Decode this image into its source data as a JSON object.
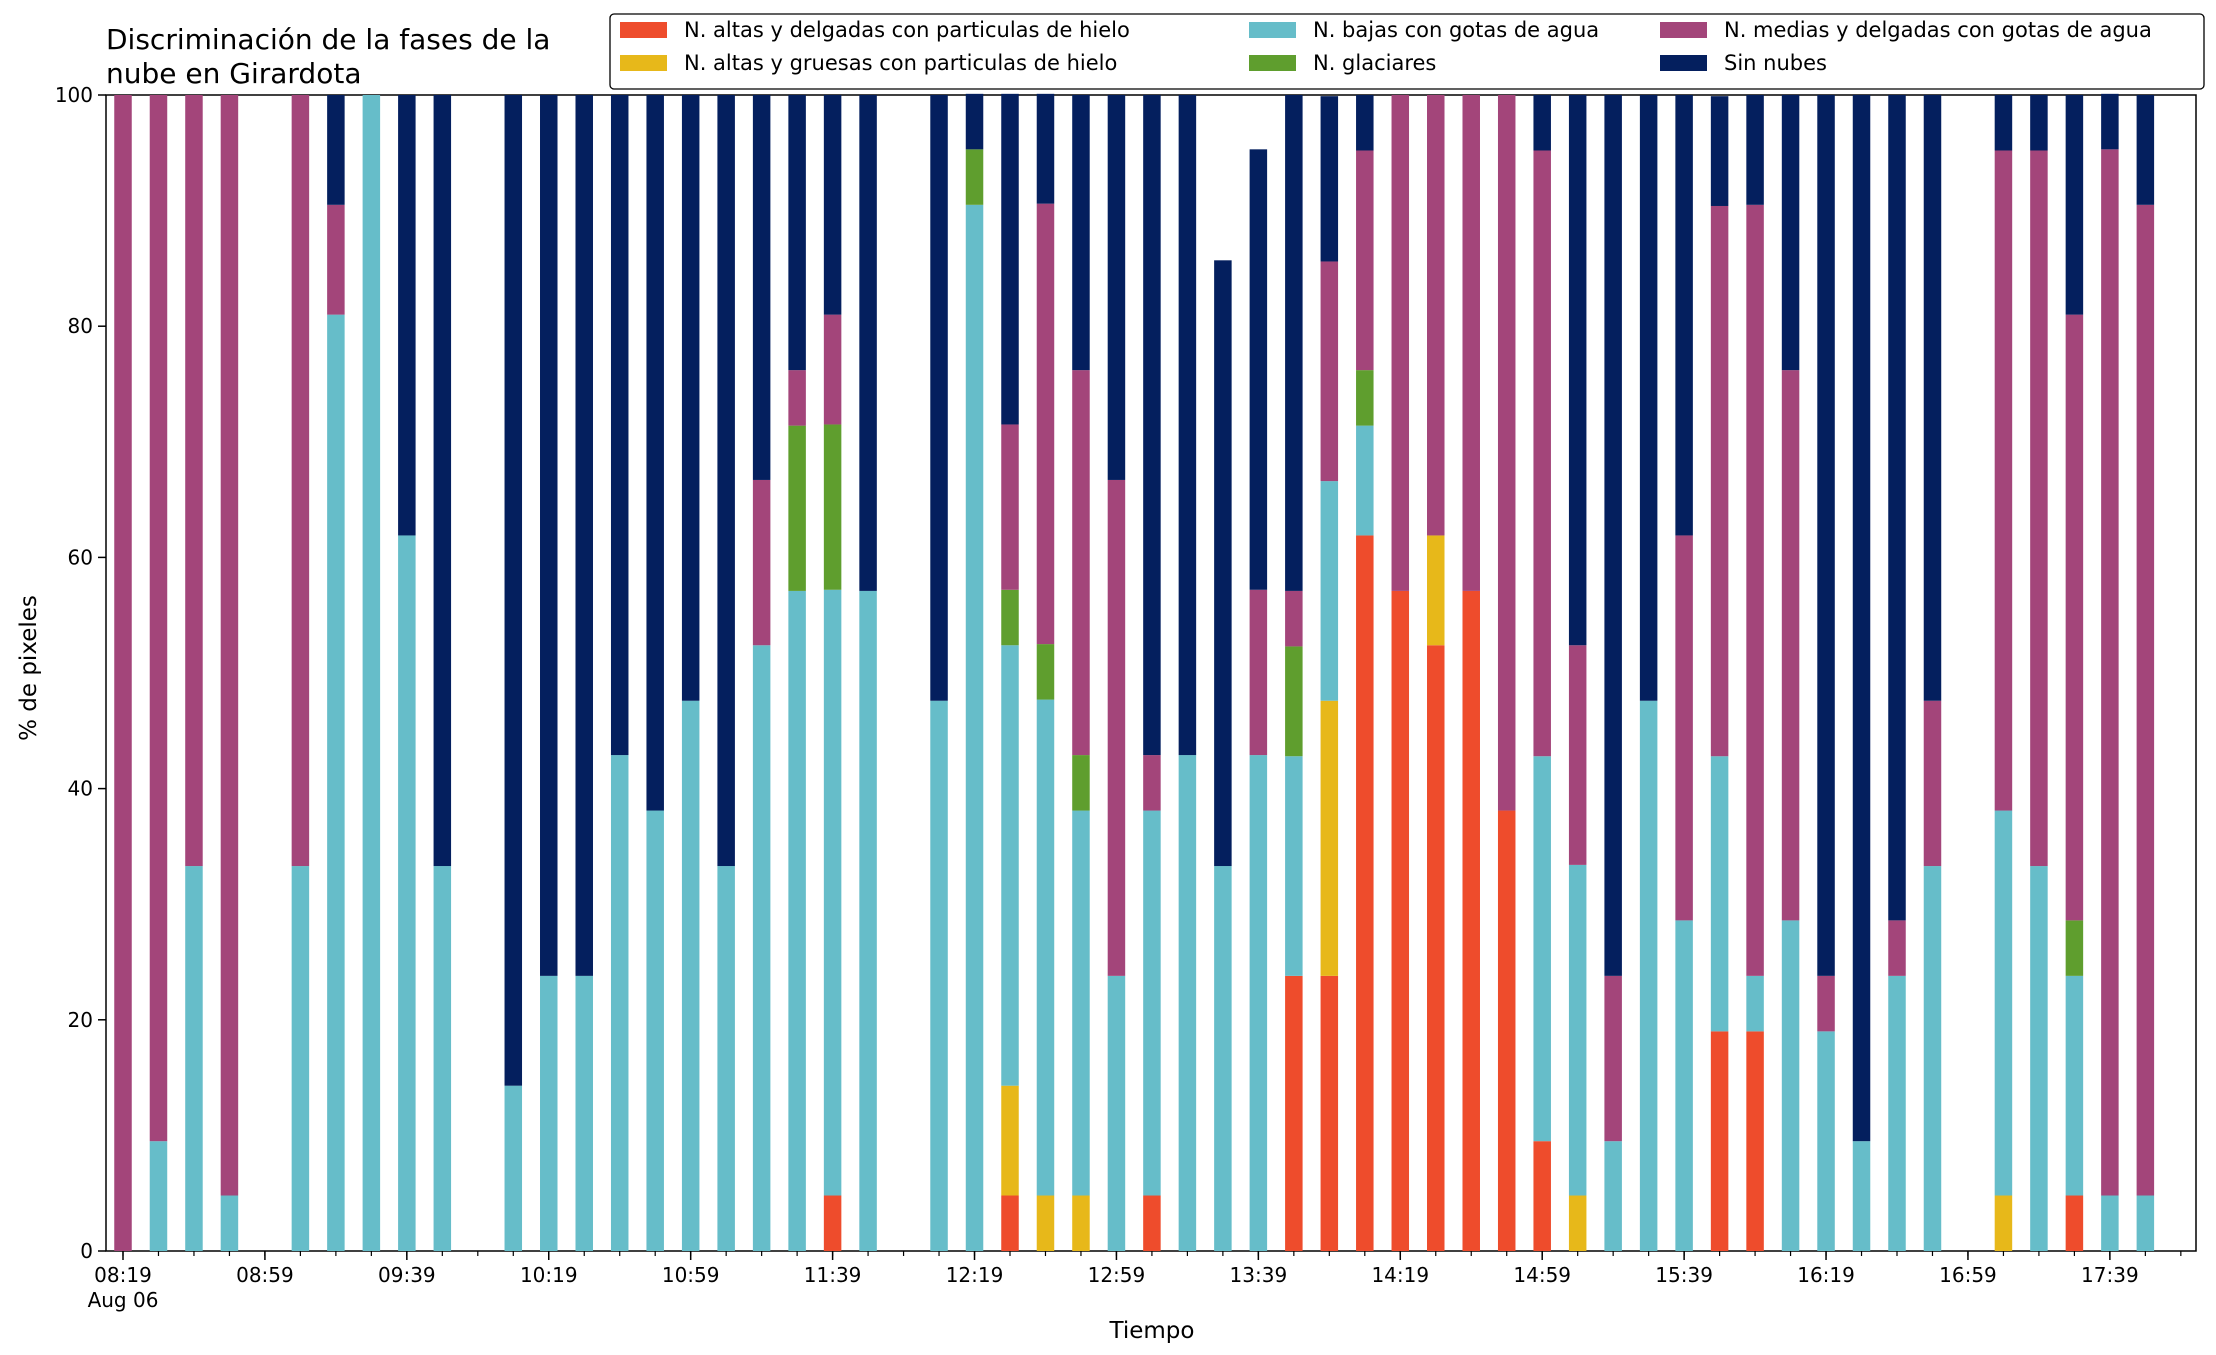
{
  "chart_data": {
    "type": "bar",
    "stacked": true,
    "title": [
      "Discriminación de la fases de la",
      "nube en Girardota"
    ],
    "xlabel": "Tiempo",
    "ylabel": "% de pixeles",
    "ylim": [
      0,
      100
    ],
    "yticks": [
      0,
      20,
      40,
      60,
      80,
      100
    ],
    "grid": false,
    "legend_placement": "top-right",
    "x_tick_labels": [
      "08:19",
      "08:59",
      "09:39",
      "10:19",
      "10:59",
      "11:39",
      "12:19",
      "12:59",
      "13:39",
      "14:19",
      "14:59",
      "15:39",
      "16:19",
      "16:59",
      "17:39"
    ],
    "x_tick_date": "Aug 06",
    "x_time_start": "08:19",
    "x_time_step_minutes": 10,
    "x_time_end": "17:59",
    "categories": [
      "08:19",
      "08:29",
      "08:39",
      "08:49",
      "08:59",
      "09:09",
      "09:19",
      "09:29",
      "09:39",
      "09:49",
      "09:59",
      "10:09",
      "10:19",
      "10:29",
      "10:39",
      "10:49",
      "10:59",
      "11:09",
      "11:19",
      "11:29",
      "11:39",
      "11:49",
      "11:59",
      "12:09",
      "12:19",
      "12:29",
      "12:39",
      "12:49",
      "12:59",
      "13:09",
      "13:19",
      "13:29",
      "13:39",
      "13:49",
      "13:59",
      "14:09",
      "14:19",
      "14:29",
      "14:39",
      "14:49",
      "14:59",
      "15:09",
      "15:19",
      "15:29",
      "15:39",
      "15:49",
      "15:59",
      "16:09",
      "16:19",
      "16:29",
      "16:39",
      "16:49",
      "16:59",
      "17:09",
      "17:19",
      "17:29",
      "17:39",
      "17:49"
    ],
    "series": [
      {
        "name": "N. altas y delgadas con particulas de hielo",
        "color": "#ee4c2c",
        "values": [
          0,
          0,
          0,
          0,
          0,
          0,
          0,
          0,
          0,
          0,
          0,
          0,
          0,
          0,
          0,
          0,
          0,
          0,
          0,
          0,
          4.8,
          0,
          0,
          0,
          0,
          4.8,
          0,
          0,
          0,
          4.8,
          0,
          0,
          0,
          23.8,
          23.8,
          61.9,
          57.1,
          52.4,
          57.1,
          38.1,
          9.5,
          0,
          0,
          0,
          0,
          19.0,
          19.0,
          0,
          0,
          0,
          0,
          0,
          0,
          0,
          0,
          4.8,
          0,
          0
        ]
      },
      {
        "name": "N. altas y gruesas con particulas de hielo",
        "color": "#e7b81a",
        "values": [
          0,
          0,
          0,
          0,
          0,
          0,
          0,
          0,
          0,
          0,
          0,
          0,
          0,
          0,
          0,
          0,
          0,
          0,
          0,
          0,
          0,
          0,
          0,
          0,
          0,
          9.5,
          4.8,
          4.8,
          0,
          0,
          0,
          0,
          0,
          0,
          23.8,
          0,
          0,
          9.5,
          0,
          0,
          0,
          4.8,
          0,
          0,
          0,
          0,
          0,
          0,
          0,
          0,
          0,
          0,
          0,
          4.8,
          0,
          0,
          0,
          0
        ]
      },
      {
        "name": "N. bajas con gotas de agua",
        "color": "#66bdc9",
        "values": [
          0,
          9.5,
          33.3,
          4.8,
          0,
          33.3,
          81.0,
          100,
          61.9,
          33.3,
          0,
          14.3,
          23.8,
          23.8,
          42.9,
          38.1,
          47.6,
          33.3,
          52.4,
          57.1,
          52.4,
          57.1,
          0,
          47.6,
          90.5,
          38.1,
          42.9,
          33.3,
          23.8,
          33.3,
          42.9,
          33.3,
          42.9,
          19.0,
          19.0,
          9.5,
          0,
          0,
          0,
          0,
          33.3,
          28.6,
          9.5,
          47.6,
          28.6,
          23.8,
          4.8,
          28.6,
          19.0,
          9.5,
          23.8,
          33.3,
          0,
          33.3,
          33.3,
          19.0,
          4.8,
          4.8
        ]
      },
      {
        "name": "N. glaciares",
        "color": "#5f9e2e",
        "values": [
          0,
          0,
          0,
          0,
          0,
          0,
          0,
          0,
          0,
          0,
          0,
          0,
          0,
          0,
          0,
          0,
          0,
          0,
          0,
          14.3,
          14.3,
          0,
          0,
          0,
          4.8,
          4.8,
          4.8,
          4.8,
          0,
          0,
          0,
          0,
          0,
          9.5,
          0,
          4.8,
          0,
          0,
          0,
          0,
          0,
          0,
          0,
          0,
          0,
          0,
          0,
          0,
          0,
          0,
          0,
          0,
          0,
          0,
          0,
          4.8,
          0,
          0
        ]
      },
      {
        "name": "N. medias y delgadas con gotas de agua",
        "color": "#a3457a",
        "values": [
          100,
          90.5,
          66.7,
          95.2,
          0,
          66.7,
          9.5,
          0,
          0,
          0,
          0,
          0,
          0,
          0,
          0,
          0,
          0,
          0,
          14.3,
          4.8,
          9.5,
          0,
          0,
          0,
          0,
          14.3,
          38.1,
          33.3,
          42.9,
          4.8,
          0,
          0,
          14.3,
          4.8,
          19.0,
          19.0,
          42.9,
          38.1,
          42.9,
          61.9,
          52.4,
          19.0,
          14.3,
          0,
          33.3,
          47.6,
          66.7,
          47.6,
          4.8,
          0,
          4.8,
          14.3,
          0,
          57.1,
          61.9,
          52.4,
          90.5,
          85.7
        ]
      },
      {
        "name": "Sin nubes",
        "color": "#041f5e",
        "values": [
          0,
          0,
          0,
          0,
          0,
          0,
          9.5,
          0,
          38.1,
          66.7,
          0,
          85.7,
          76.2,
          76.2,
          57.1,
          61.9,
          52.4,
          66.7,
          33.3,
          23.8,
          19.0,
          42.9,
          0,
          52.4,
          4.8,
          28.6,
          9.5,
          23.8,
          33.3,
          57.1,
          57.1,
          52.4,
          38.1,
          42.9,
          14.3,
          4.8,
          0,
          0,
          0,
          0,
          4.8,
          47.6,
          76.2,
          52.4,
          38.1,
          9.5,
          9.5,
          23.8,
          76.2,
          90.5,
          71.4,
          52.4,
          0,
          4.8,
          4.8,
          19.0,
          4.8,
          9.5
        ]
      }
    ]
  }
}
